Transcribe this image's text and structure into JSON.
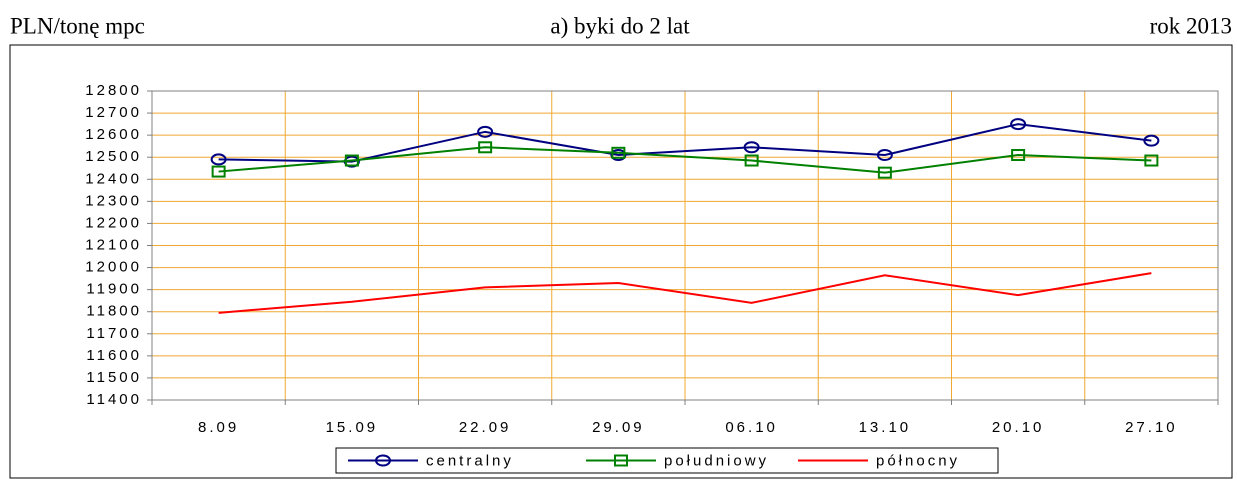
{
  "chart_data": {
    "type": "line",
    "title": "a) byki do 2 lat",
    "y_label": "PLN/tonę mpc",
    "annotation": "rok 2013",
    "categories": [
      "8.09",
      "15.09",
      "22.09",
      "29.09",
      "06.10",
      "13.10",
      "20.10",
      "27.10"
    ],
    "series": [
      {
        "name": "centralny",
        "color": "#000080",
        "marker": "circle",
        "values": [
          12490,
          12480,
          12615,
          12510,
          12545,
          12510,
          12650,
          12575
        ]
      },
      {
        "name": "południowy",
        "color": "#008000",
        "marker": "square",
        "values": [
          12435,
          12485,
          12545,
          12520,
          12485,
          12430,
          12510,
          12485
        ]
      },
      {
        "name": "północny",
        "color": "#ff0000",
        "marker": "none",
        "values": [
          11795,
          11845,
          11910,
          11930,
          11840,
          11965,
          11875,
          11975
        ]
      }
    ],
    "ylim": [
      11400,
      12800
    ],
    "yticks": [
      11400,
      11500,
      11600,
      11700,
      11800,
      11900,
      12000,
      12100,
      12200,
      12300,
      12400,
      12500,
      12600,
      12700,
      12800
    ],
    "grid": true,
    "grid_color": "#f0a830",
    "legend": "bottom"
  }
}
